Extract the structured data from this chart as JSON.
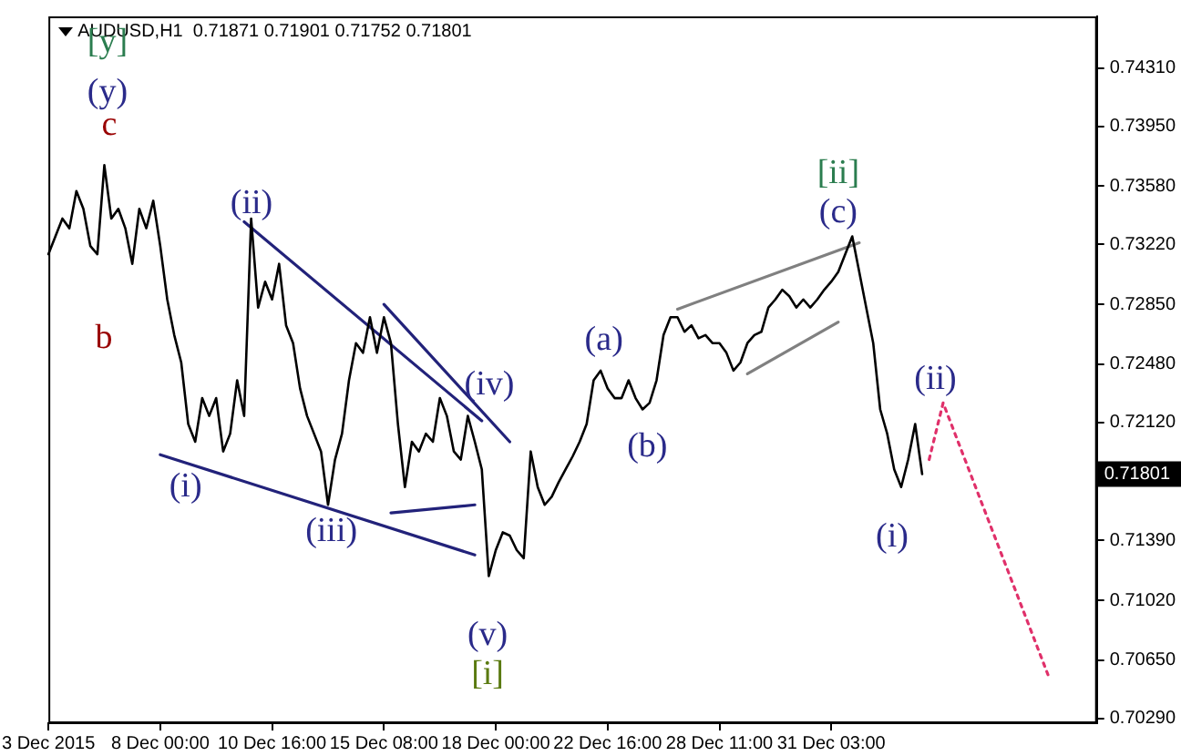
{
  "chart_data": {
    "type": "line",
    "title": "AUDUSD,H1  0.71871 0.71901 0.71752 0.71801",
    "categories": [
      "3 Dec 2015",
      null,
      null,
      null,
      null,
      null,
      null,
      null,
      null,
      null,
      null,
      null,
      null,
      null,
      null,
      null,
      "8 Dec 00:00",
      null,
      null,
      null,
      null,
      null,
      null,
      null,
      null,
      null,
      null,
      null,
      null,
      null,
      null,
      null,
      "10 Dec 16:00",
      null,
      null,
      null,
      null,
      null,
      null,
      null,
      null,
      null,
      null,
      null,
      null,
      null,
      null,
      null,
      "15 Dec 08:00",
      null,
      null,
      null,
      null,
      null,
      null,
      null,
      null,
      null,
      null,
      null,
      null,
      null,
      null,
      null,
      "18 Dec 00:00",
      null,
      null,
      null,
      null,
      null,
      null,
      null,
      null,
      null,
      null,
      null,
      null,
      null,
      null,
      null,
      "22 Dec 16:00",
      null,
      null,
      null,
      null,
      null,
      null,
      null,
      null,
      null,
      null,
      null,
      null,
      null,
      null,
      null,
      "28 Dec 11:00",
      null,
      null,
      null,
      null,
      null,
      null,
      null,
      null,
      null,
      null,
      null,
      null,
      null,
      null,
      null,
      "31 Dec 03:00",
      null,
      null,
      null,
      null,
      null,
      null,
      null,
      null,
      null,
      null,
      null,
      null,
      null,
      null,
      null,
      null,
      null,
      null,
      null,
      null,
      null,
      null,
      null,
      null,
      null,
      null,
      null,
      null,
      null,
      null,
      null,
      null,
      null,
      null,
      null,
      null,
      null,
      null
    ],
    "series": [
      {
        "color": "#000000",
        "values": [
          0.7316,
          0.7327,
          0.7338,
          0.7332,
          0.7355,
          0.7344,
          0.7321,
          0.7316,
          0.7371,
          0.7338,
          0.7344,
          0.7332,
          0.731,
          0.7344,
          0.7332,
          0.7349,
          0.7321,
          0.7288,
          0.7266,
          0.7249,
          0.7211,
          0.72,
          0.7227,
          0.7216,
          0.7227,
          0.7194,
          0.7205,
          0.7238,
          0.7216,
          0.7338,
          0.7283,
          0.7299,
          0.7288,
          0.731,
          0.7272,
          0.7261,
          0.7233,
          0.7216,
          0.7205,
          0.7194,
          0.7161,
          0.7189,
          0.7205,
          0.7238,
          0.7261,
          0.7255,
          0.7277,
          0.7255,
          0.7277,
          0.7261,
          0.7211,
          0.7172,
          0.72,
          0.7194,
          0.7205,
          0.72,
          0.7227,
          0.7216,
          0.7194,
          0.7189,
          0.7216,
          0.72,
          0.7183,
          0.7117,
          0.7133,
          0.7144,
          0.7142,
          0.7133,
          0.7128,
          0.7194,
          0.7172,
          0.7161,
          0.7166,
          0.7175,
          0.7183,
          0.7191,
          0.72,
          0.7211,
          0.7238,
          0.7244,
          0.7233,
          0.7227,
          0.7227,
          0.7238,
          0.7227,
          0.722,
          0.7224,
          0.7238,
          0.7266,
          0.7277,
          0.7277,
          0.7268,
          0.7272,
          0.7264,
          0.7266,
          0.7261,
          0.7261,
          0.7255,
          0.7244,
          0.7249,
          0.7261,
          0.7266,
          0.7268,
          0.7283,
          0.7288,
          0.7294,
          0.729,
          0.7283,
          0.7288,
          0.7283,
          0.7288,
          0.7294,
          0.7299,
          0.7305,
          0.7316,
          0.7327,
          0.7305,
          0.7283,
          0.7261,
          0.722,
          0.7205,
          0.7183,
          0.7172,
          0.7189,
          0.7211,
          0.718,
          null,
          null,
          null,
          null,
          null,
          null,
          null,
          null,
          null,
          null,
          null,
          null,
          null,
          null,
          null,
          null,
          null,
          null,
          null,
          null,
          null,
          null,
          null,
          null,
          null
        ]
      },
      {
        "type": "line",
        "color": "#22227a",
        "values": [
          null,
          null,
          null,
          null,
          null,
          null,
          null,
          null,
          null,
          null,
          null,
          null,
          null,
          null,
          null,
          null,
          0.7192,
          null,
          null,
          null,
          null,
          null,
          null,
          null,
          null,
          null,
          null,
          null,
          null,
          null,
          null,
          null,
          null,
          null,
          null,
          null,
          null,
          null,
          null,
          null,
          null,
          null,
          null,
          null,
          null,
          null,
          null,
          null,
          null,
          null,
          null,
          null,
          null,
          null,
          null,
          null,
          null,
          null,
          null,
          null,
          null,
          0.713,
          null,
          null,
          null,
          null,
          null,
          null,
          null,
          null,
          null,
          null,
          null,
          null,
          null,
          null,
          null,
          null,
          null,
          null,
          null,
          null,
          null,
          null,
          null,
          null,
          null,
          null,
          null,
          null,
          null,
          null,
          null,
          null,
          null,
          null,
          null,
          null,
          null,
          null,
          null,
          null,
          null,
          null,
          null,
          null,
          null,
          null,
          null,
          null,
          null,
          null,
          null,
          null,
          null,
          null,
          null,
          null,
          null,
          null,
          null,
          null,
          null,
          null,
          null,
          null,
          null,
          null,
          null,
          null,
          null,
          null,
          null,
          null,
          null,
          null,
          null,
          null,
          null,
          null,
          null,
          null,
          null,
          null,
          null,
          null,
          null,
          null,
          null,
          null,
          null
        ]
      },
      {
        "type": "line",
        "color": "#22227a",
        "values": [
          null,
          null,
          null,
          null,
          null,
          null,
          null,
          null,
          null,
          null,
          null,
          null,
          null,
          null,
          null,
          null,
          null,
          null,
          null,
          null,
          null,
          null,
          null,
          null,
          null,
          null,
          null,
          null,
          0.7336,
          null,
          null,
          null,
          null,
          null,
          null,
          null,
          null,
          null,
          null,
          null,
          null,
          null,
          null,
          null,
          null,
          null,
          null,
          null,
          null,
          null,
          null,
          null,
          null,
          null,
          null,
          null,
          null,
          null,
          null,
          null,
          null,
          null,
          0.7213,
          null,
          null,
          null,
          null,
          null,
          null,
          null,
          null,
          null,
          null,
          null,
          null,
          null,
          null,
          null,
          null,
          null,
          null,
          null,
          null,
          null,
          null,
          null,
          null,
          null,
          null,
          null,
          null,
          null,
          null,
          null,
          null,
          null,
          null,
          null,
          null,
          null,
          null,
          null,
          null,
          null,
          null,
          null,
          null,
          null,
          null,
          null,
          null,
          null,
          null,
          null,
          null,
          null,
          null,
          null,
          null,
          null,
          null,
          null,
          null,
          null,
          null,
          null,
          null,
          null,
          null,
          null,
          null,
          null,
          null,
          null,
          null,
          null,
          null,
          null,
          null,
          null,
          null,
          null,
          null,
          null,
          null,
          null,
          null,
          null,
          null,
          null,
          null
        ]
      },
      {
        "type": "line",
        "color": "#22227a",
        "values": [
          null,
          null,
          null,
          null,
          null,
          null,
          null,
          null,
          null,
          null,
          null,
          null,
          null,
          null,
          null,
          null,
          null,
          null,
          null,
          null,
          null,
          null,
          null,
          null,
          null,
          null,
          null,
          null,
          null,
          null,
          null,
          null,
          null,
          null,
          null,
          null,
          null,
          null,
          null,
          null,
          null,
          null,
          null,
          null,
          null,
          null,
          null,
          null,
          0.7285,
          null,
          null,
          null,
          null,
          null,
          null,
          null,
          null,
          null,
          null,
          null,
          null,
          null,
          null,
          null,
          null,
          null,
          0.72,
          null,
          null,
          null,
          null,
          null,
          null,
          null,
          null,
          null,
          null,
          null,
          null,
          null,
          null,
          null,
          null,
          null,
          null,
          null,
          null,
          null,
          null,
          null,
          null,
          null,
          null,
          null,
          null,
          null,
          null,
          null,
          null,
          null,
          null,
          null,
          null,
          null,
          null,
          null,
          null,
          null,
          null,
          null,
          null,
          null,
          null,
          null,
          null,
          null,
          null,
          null,
          null,
          null,
          null,
          null,
          null,
          null,
          null,
          null,
          null,
          null,
          null,
          null,
          null,
          null,
          null,
          null,
          null,
          null,
          null,
          null,
          null,
          null,
          null,
          null,
          null,
          null,
          null,
          null,
          null,
          null,
          null,
          null,
          null
        ]
      },
      {
        "type": "line",
        "color": "#22227a",
        "values": [
          null,
          null,
          null,
          null,
          null,
          null,
          null,
          null,
          null,
          null,
          null,
          null,
          null,
          null,
          null,
          null,
          null,
          null,
          null,
          null,
          null,
          null,
          null,
          null,
          null,
          null,
          null,
          null,
          null,
          null,
          null,
          null,
          null,
          null,
          null,
          null,
          null,
          null,
          null,
          null,
          null,
          null,
          null,
          null,
          null,
          null,
          null,
          null,
          null,
          0.7156,
          null,
          null,
          null,
          null,
          null,
          null,
          null,
          null,
          null,
          null,
          null,
          0.7161,
          null,
          null,
          null,
          null,
          null,
          null,
          null,
          null,
          null,
          null,
          null,
          null,
          null,
          null,
          null,
          null,
          null,
          null,
          null,
          null,
          null,
          null,
          null,
          null,
          null,
          null,
          null,
          null,
          null,
          null,
          null,
          null,
          null,
          null,
          null,
          null,
          null,
          null,
          null,
          null,
          null,
          null,
          null,
          null,
          null,
          null,
          null,
          null,
          null,
          null,
          null,
          null,
          null,
          null,
          null,
          null,
          null,
          null,
          null,
          null,
          null,
          null,
          null,
          null,
          null,
          null,
          null,
          null,
          null,
          null,
          null,
          null,
          null,
          null,
          null,
          null,
          null,
          null,
          null,
          null,
          null,
          null,
          null,
          null,
          null,
          null,
          null,
          null,
          null
        ]
      },
      {
        "type": "line",
        "color": "#808080",
        "values": [
          null,
          null,
          null,
          null,
          null,
          null,
          null,
          null,
          null,
          null,
          null,
          null,
          null,
          null,
          null,
          null,
          null,
          null,
          null,
          null,
          null,
          null,
          null,
          null,
          null,
          null,
          null,
          null,
          null,
          null,
          null,
          null,
          null,
          null,
          null,
          null,
          null,
          null,
          null,
          null,
          null,
          null,
          null,
          null,
          null,
          null,
          null,
          null,
          null,
          null,
          null,
          null,
          null,
          null,
          null,
          null,
          null,
          null,
          null,
          null,
          null,
          null,
          null,
          null,
          null,
          null,
          null,
          null,
          null,
          null,
          null,
          null,
          null,
          null,
          null,
          null,
          null,
          null,
          null,
          null,
          null,
          null,
          null,
          null,
          null,
          null,
          null,
          null,
          null,
          null,
          0.7282,
          null,
          null,
          null,
          null,
          null,
          null,
          null,
          null,
          null,
          null,
          null,
          null,
          null,
          null,
          null,
          null,
          null,
          null,
          null,
          null,
          null,
          null,
          null,
          null,
          null,
          0.7323,
          null,
          null,
          null,
          null,
          null,
          null,
          null,
          null,
          null,
          null,
          null,
          null,
          null,
          null,
          null,
          null,
          null,
          null,
          null,
          null,
          null,
          null,
          null,
          null,
          null,
          null,
          null,
          null,
          null,
          null,
          null,
          null,
          null,
          null
        ]
      },
      {
        "type": "line",
        "color": "#808080",
        "values": [
          null,
          null,
          null,
          null,
          null,
          null,
          null,
          null,
          null,
          null,
          null,
          null,
          null,
          null,
          null,
          null,
          null,
          null,
          null,
          null,
          null,
          null,
          null,
          null,
          null,
          null,
          null,
          null,
          null,
          null,
          null,
          null,
          null,
          null,
          null,
          null,
          null,
          null,
          null,
          null,
          null,
          null,
          null,
          null,
          null,
          null,
          null,
          null,
          null,
          null,
          null,
          null,
          null,
          null,
          null,
          null,
          null,
          null,
          null,
          null,
          null,
          null,
          null,
          null,
          null,
          null,
          null,
          null,
          null,
          null,
          null,
          null,
          null,
          null,
          null,
          null,
          null,
          null,
          null,
          null,
          null,
          null,
          null,
          null,
          null,
          null,
          null,
          null,
          null,
          null,
          null,
          null,
          null,
          null,
          null,
          null,
          null,
          null,
          null,
          null,
          0.7242,
          null,
          null,
          null,
          null,
          null,
          null,
          null,
          null,
          null,
          null,
          null,
          null,
          0.7274,
          null,
          null,
          null,
          null,
          null,
          null,
          null,
          null,
          null,
          null,
          null,
          null,
          null,
          null,
          null,
          null,
          null,
          null,
          null,
          null,
          null,
          null,
          null,
          null,
          null,
          null,
          null,
          null,
          null,
          null,
          null,
          null,
          null,
          null,
          null,
          null,
          null
        ]
      },
      {
        "type": "line",
        "color": "#e0306a",
        "line_style": "dotted",
        "values": [
          null,
          null,
          null,
          null,
          null,
          null,
          null,
          null,
          null,
          null,
          null,
          null,
          null,
          null,
          null,
          null,
          null,
          null,
          null,
          null,
          null,
          null,
          null,
          null,
          null,
          null,
          null,
          null,
          null,
          null,
          null,
          null,
          null,
          null,
          null,
          null,
          null,
          null,
          null,
          null,
          null,
          null,
          null,
          null,
          null,
          null,
          null,
          null,
          null,
          null,
          null,
          null,
          null,
          null,
          null,
          null,
          null,
          null,
          null,
          null,
          null,
          null,
          null,
          null,
          null,
          null,
          null,
          null,
          null,
          null,
          null,
          null,
          null,
          null,
          null,
          null,
          null,
          null,
          null,
          null,
          null,
          null,
          null,
          null,
          null,
          null,
          null,
          null,
          null,
          null,
          null,
          null,
          null,
          null,
          null,
          null,
          null,
          null,
          null,
          null,
          null,
          null,
          null,
          null,
          null,
          null,
          null,
          null,
          null,
          null,
          null,
          null,
          null,
          null,
          null,
          null,
          null,
          null,
          null,
          null,
          null,
          null,
          null,
          null,
          null,
          null,
          0.7189,
          null,
          0.7224,
          null,
          null,
          null,
          null,
          null,
          null,
          null,
          null,
          null,
          null,
          null,
          null,
          null,
          null,
          0.7056,
          null,
          null,
          null,
          null,
          null,
          null,
          null
        ]
      }
    ],
    "ylim": [
      0.7026,
      0.7463
    ],
    "yticks": [
      {
        "value": 0.7029,
        "label": "0.70290"
      },
      {
        "value": 0.7065,
        "label": "0.70650"
      },
      {
        "value": 0.7102,
        "label": "0.71020"
      },
      {
        "value": 0.7139,
        "label": "0.71390"
      },
      {
        "value": 0.7176,
        "label": null
      },
      {
        "value": 0.7212,
        "label": "0.72120"
      },
      {
        "value": 0.7248,
        "label": "0.72480"
      },
      {
        "value": 0.7285,
        "label": "0.72850"
      },
      {
        "value": 0.7322,
        "label": "0.73220"
      },
      {
        "value": 0.7358,
        "label": "0.73580"
      },
      {
        "value": 0.7395,
        "label": "0.73950"
      },
      {
        "value": 0.7431,
        "label": "0.74310"
      }
    ],
    "grid": false,
    "marker": "none",
    "line_style": "solid",
    "annotations": [
      "[y]",
      "(y)",
      "c",
      "b",
      "(ii)",
      "(i)",
      "(iii)",
      "(iv)",
      "(v)",
      "[i]",
      "(a)",
      "(b)",
      "[ii]",
      "(c)",
      "(ii)",
      "(i)",
      "0.71801"
    ]
  }
}
